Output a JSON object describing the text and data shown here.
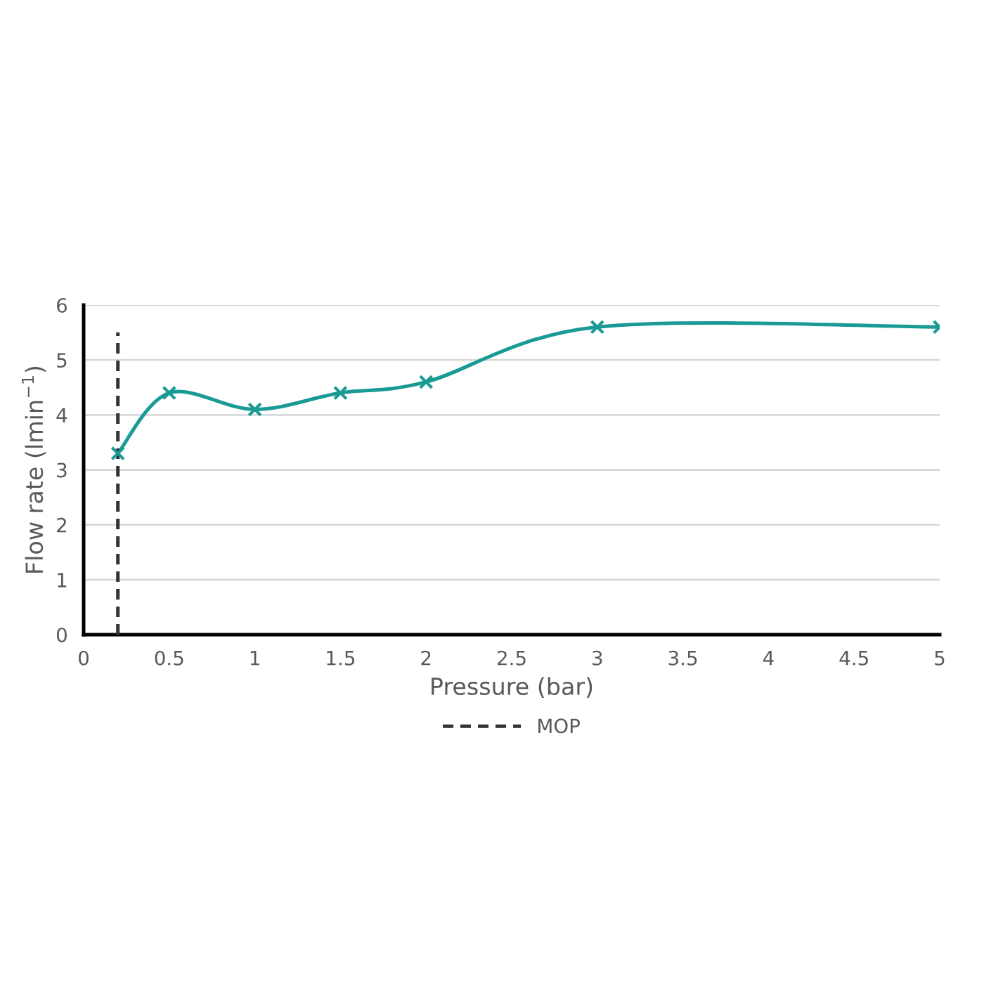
{
  "chart_data": {
    "type": "line",
    "xlabel": "Pressure (bar)",
    "ylabel": "Flow rate (lmin$^{−1}$)",
    "xlim": [
      0,
      5
    ],
    "xticks": [
      0,
      0.5,
      1,
      1.5,
      2,
      2.5,
      3,
      3.5,
      4,
      4.5,
      5
    ],
    "ylim": [
      0,
      6
    ],
    "yticks": [
      0,
      1,
      2,
      3,
      4,
      5,
      6
    ],
    "grid": "y",
    "legend": "bottom",
    "series": [
      {
        "color": "#1a9a94",
        "marker": "cross",
        "line_style": "solid",
        "x": [
          0.2,
          0.5,
          1,
          1.5,
          2,
          3,
          5
        ],
        "values": [
          3.3,
          4.4,
          4.1,
          4.4,
          4.6,
          5.6,
          5.6
        ]
      },
      {
        "name": "MOP",
        "color": "#333333",
        "marker": "none",
        "line_style": "dashed",
        "x": [
          0.2,
          0.2
        ],
        "values": [
          0,
          5.5
        ]
      }
    ]
  }
}
